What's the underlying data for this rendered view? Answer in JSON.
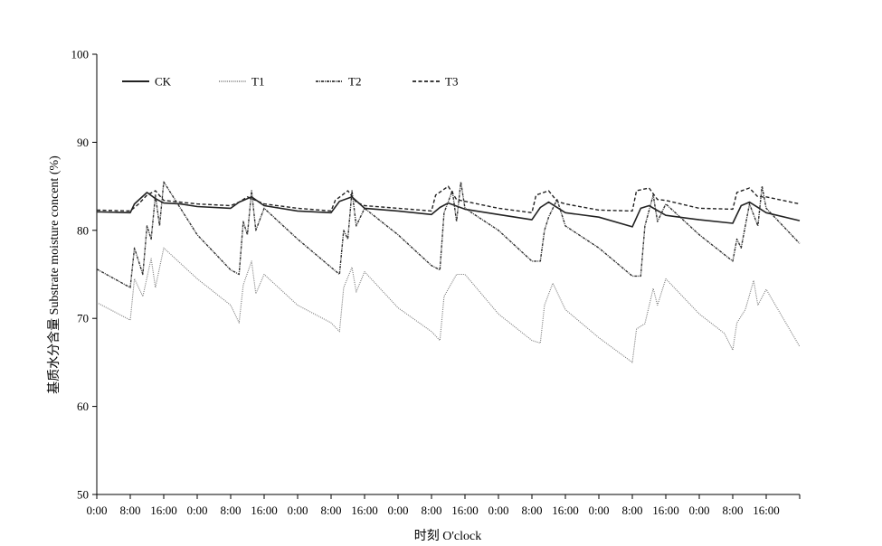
{
  "chart_data": {
    "type": "line",
    "title": "",
    "xlabel": "时刻 O'clock",
    "ylabel": "基质水分含量 Substrate moisture concent (%)",
    "ylim": [
      50,
      100
    ],
    "yticks": [
      50,
      60,
      70,
      80,
      90,
      100
    ],
    "xlim": [
      0,
      168
    ],
    "xtick_labels": [
      "0:00",
      "8:00",
      "16:00",
      "0:00",
      "8:00",
      "16:00",
      "0:00",
      "8:00",
      "16:00",
      "0:00",
      "8:00",
      "16:00",
      "0:00",
      "8:00",
      "16:00",
      "0:00",
      "8:00",
      "16:00",
      "0:00",
      "8:00",
      "16:00"
    ],
    "x_unit": "hours from first 0:00",
    "legend_position": "top-left",
    "grid": false,
    "series": [
      {
        "name": "CK",
        "color": "#222222",
        "style": "solid",
        "points": [
          [
            0,
            82.1
          ],
          [
            8,
            82.0
          ],
          [
            9,
            83.0
          ],
          [
            12,
            84.3
          ],
          [
            14,
            83.6
          ],
          [
            16,
            83.1
          ],
          [
            20,
            83.0
          ],
          [
            24,
            82.7
          ],
          [
            32,
            82.5
          ],
          [
            34,
            83.2
          ],
          [
            37,
            83.8
          ],
          [
            40,
            82.8
          ],
          [
            48,
            82.2
          ],
          [
            56,
            82.0
          ],
          [
            58,
            83.3
          ],
          [
            61,
            83.8
          ],
          [
            64,
            82.5
          ],
          [
            72,
            82.2
          ],
          [
            80,
            81.8
          ],
          [
            82,
            82.6
          ],
          [
            84,
            83.1
          ],
          [
            88,
            82.4
          ],
          [
            96,
            81.8
          ],
          [
            104,
            81.2
          ],
          [
            106,
            82.6
          ],
          [
            108,
            83.2
          ],
          [
            112,
            82.0
          ],
          [
            120,
            81.5
          ],
          [
            128,
            80.4
          ],
          [
            130,
            82.5
          ],
          [
            132,
            82.8
          ],
          [
            136,
            81.7
          ],
          [
            144,
            81.2
          ],
          [
            152,
            80.8
          ],
          [
            154,
            82.8
          ],
          [
            156,
            83.2
          ],
          [
            160,
            82.0
          ],
          [
            168,
            81.1
          ]
        ]
      },
      {
        "name": "T1",
        "color": "#777777",
        "style": "dotted",
        "points": [
          [
            0,
            71.8
          ],
          [
            8,
            69.8
          ],
          [
            9,
            74.5
          ],
          [
            11,
            72.5
          ],
          [
            13,
            76.8
          ],
          [
            14,
            73.5
          ],
          [
            16,
            78.0
          ],
          [
            24,
            74.5
          ],
          [
            32,
            71.5
          ],
          [
            34,
            69.5
          ],
          [
            35,
            73.8
          ],
          [
            37,
            76.5
          ],
          [
            38,
            72.8
          ],
          [
            40,
            75.0
          ],
          [
            48,
            71.5
          ],
          [
            56,
            69.5
          ],
          [
            58,
            68.5
          ],
          [
            59,
            73.5
          ],
          [
            61,
            75.8
          ],
          [
            62,
            73.0
          ],
          [
            64,
            75.3
          ],
          [
            72,
            71.2
          ],
          [
            80,
            68.5
          ],
          [
            82,
            67.5
          ],
          [
            83,
            72.5
          ],
          [
            86,
            75.0
          ],
          [
            88,
            75.0
          ],
          [
            96,
            70.5
          ],
          [
            104,
            67.5
          ],
          [
            106,
            67.2
          ],
          [
            107,
            71.5
          ],
          [
            109,
            74.0
          ],
          [
            112,
            71.0
          ],
          [
            120,
            67.8
          ],
          [
            128,
            65.0
          ],
          [
            129,
            68.8
          ],
          [
            131,
            69.4
          ],
          [
            133,
            73.4
          ],
          [
            134,
            71.5
          ],
          [
            136,
            74.5
          ],
          [
            144,
            70.5
          ],
          [
            150,
            68.3
          ],
          [
            152,
            66.4
          ],
          [
            153,
            69.5
          ],
          [
            155,
            71.0
          ],
          [
            157,
            74.3
          ],
          [
            158,
            71.5
          ],
          [
            160,
            73.3
          ],
          [
            168,
            66.8
          ]
        ]
      },
      {
        "name": "T2",
        "color": "#333333",
        "style": "dash-dot",
        "points": [
          [
            0,
            75.6
          ],
          [
            8,
            73.5
          ],
          [
            9,
            78.0
          ],
          [
            11,
            75.0
          ],
          [
            12,
            80.5
          ],
          [
            13,
            79.0
          ],
          [
            14,
            84.0
          ],
          [
            15,
            80.5
          ],
          [
            16,
            85.5
          ],
          [
            24,
            79.5
          ],
          [
            32,
            75.5
          ],
          [
            34,
            75.0
          ],
          [
            35,
            81.0
          ],
          [
            36,
            79.5
          ],
          [
            37,
            84.5
          ],
          [
            38,
            80.0
          ],
          [
            40,
            82.5
          ],
          [
            48,
            79.0
          ],
          [
            56,
            75.8
          ],
          [
            58,
            75.0
          ],
          [
            59,
            80.0
          ],
          [
            60,
            79.0
          ],
          [
            61,
            84.5
          ],
          [
            62,
            80.5
          ],
          [
            64,
            82.5
          ],
          [
            72,
            79.5
          ],
          [
            80,
            76.0
          ],
          [
            82,
            75.5
          ],
          [
            83,
            82.0
          ],
          [
            85,
            84.5
          ],
          [
            86,
            81.0
          ],
          [
            87,
            85.5
          ],
          [
            88,
            82.5
          ],
          [
            96,
            80.0
          ],
          [
            104,
            76.5
          ],
          [
            106,
            76.5
          ],
          [
            107,
            80.0
          ],
          [
            108,
            81.5
          ],
          [
            110,
            83.5
          ],
          [
            112,
            80.5
          ],
          [
            120,
            78.0
          ],
          [
            128,
            74.8
          ],
          [
            130,
            74.8
          ],
          [
            131,
            80.5
          ],
          [
            133,
            84.0
          ],
          [
            134,
            81.0
          ],
          [
            136,
            83.0
          ],
          [
            144,
            79.5
          ],
          [
            152,
            76.5
          ],
          [
            153,
            79.0
          ],
          [
            154,
            78.0
          ],
          [
            156,
            83.0
          ],
          [
            158,
            80.5
          ],
          [
            159,
            85.0
          ],
          [
            160,
            82.5
          ],
          [
            168,
            78.5
          ]
        ]
      },
      {
        "name": "T3",
        "color": "#222222",
        "style": "dashed",
        "points": [
          [
            0,
            82.3
          ],
          [
            8,
            82.2
          ],
          [
            10,
            83.0
          ],
          [
            12,
            84.0
          ],
          [
            14,
            84.5
          ],
          [
            16,
            83.4
          ],
          [
            24,
            83.0
          ],
          [
            32,
            82.8
          ],
          [
            34,
            83.2
          ],
          [
            36,
            83.8
          ],
          [
            40,
            83.0
          ],
          [
            48,
            82.5
          ],
          [
            56,
            82.2
          ],
          [
            57,
            83.4
          ],
          [
            60,
            84.5
          ],
          [
            62,
            83.2
          ],
          [
            64,
            82.8
          ],
          [
            72,
            82.5
          ],
          [
            80,
            82.2
          ],
          [
            81,
            84.0
          ],
          [
            84,
            85.0
          ],
          [
            86,
            83.5
          ],
          [
            88,
            83.3
          ],
          [
            96,
            82.5
          ],
          [
            104,
            82.0
          ],
          [
            105,
            84.0
          ],
          [
            108,
            84.5
          ],
          [
            110,
            83.3
          ],
          [
            112,
            83.0
          ],
          [
            120,
            82.3
          ],
          [
            128,
            82.2
          ],
          [
            129,
            84.5
          ],
          [
            132,
            84.8
          ],
          [
            134,
            83.5
          ],
          [
            136,
            83.4
          ],
          [
            144,
            82.5
          ],
          [
            152,
            82.4
          ],
          [
            153,
            84.3
          ],
          [
            156,
            84.8
          ],
          [
            158,
            83.8
          ],
          [
            160,
            83.8
          ],
          [
            168,
            83.0
          ]
        ]
      }
    ]
  }
}
